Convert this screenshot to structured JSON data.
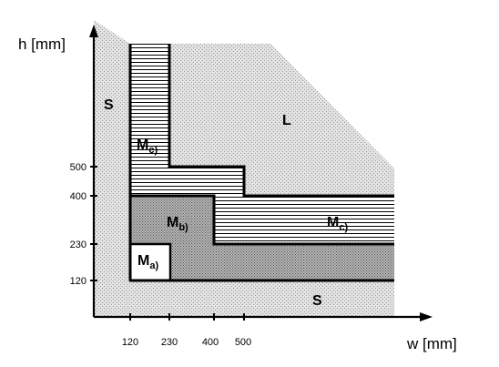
{
  "axes": {
    "x_title": "w [mm]",
    "y_title": "h [mm]",
    "x_ticks": [
      "120",
      "230",
      "400",
      "500"
    ],
    "y_ticks": [
      "120",
      "230",
      "400",
      "500"
    ]
  },
  "regions": {
    "s_left": "S",
    "s_bottom": "S",
    "l": "L",
    "m_c_vertical": {
      "main": "M",
      "sub": "c)"
    },
    "m_c_horizontal": {
      "main": "M",
      "sub": "c)"
    },
    "m_b": {
      "main": "M",
      "sub": "b)"
    },
    "m_a": {
      "main": "M",
      "sub": "a)"
    }
  },
  "colors": {
    "dotted_fill": "#e2e2e2",
    "dotted_grain": "#9a9a9a",
    "m_b_fill": "#b4b4b4",
    "m_b_grain": "#555555",
    "hatch_line": "#000000",
    "m_a_box": "#ffffff",
    "ink": "#000000"
  }
}
